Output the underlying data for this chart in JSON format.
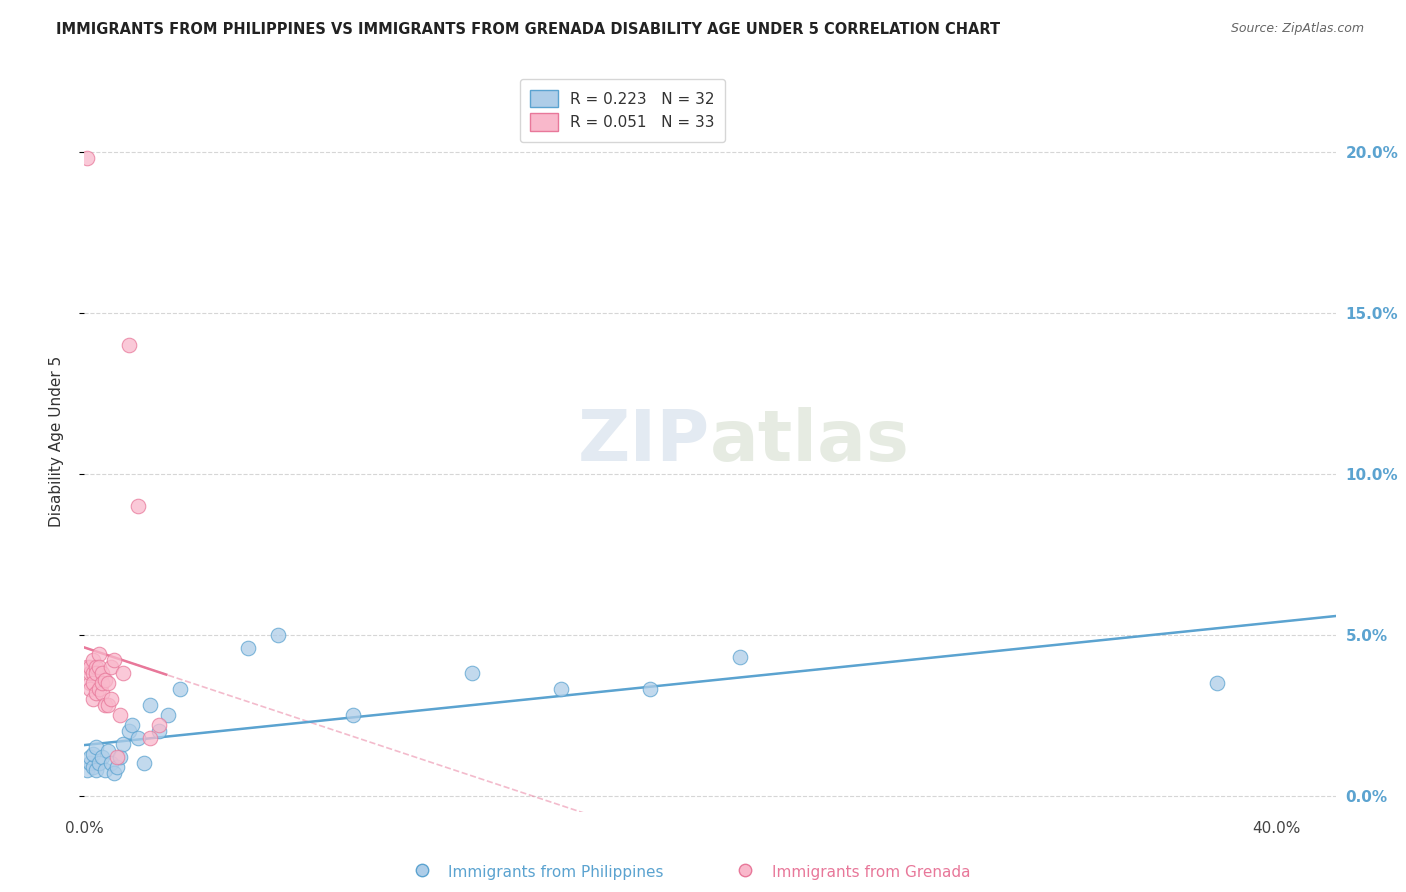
{
  "title": "IMMIGRANTS FROM PHILIPPINES VS IMMIGRANTS FROM GRENADA DISABILITY AGE UNDER 5 CORRELATION CHART",
  "source": "Source: ZipAtlas.com",
  "xlabel_philippines": "Immigrants from Philippines",
  "xlabel_grenada": "Immigrants from Grenada",
  "ylabel": "Disability Age Under 5",
  "r_philippines": 0.223,
  "n_philippines": 32,
  "r_grenada": 0.051,
  "n_grenada": 33,
  "color_philippines": "#aecde8",
  "color_grenada": "#f9b8cb",
  "line_color_philippines": "#5ba3d0",
  "line_color_grenada": "#e8789a",
  "right_tick_color": "#5ba3d0",
  "xlim": [
    0.0,
    0.42
  ],
  "ylim": [
    -0.005,
    0.225
  ],
  "right_yticks": [
    0.0,
    0.05,
    0.1,
    0.15,
    0.2
  ],
  "right_yticklabels": [
    "0.0%",
    "5.0%",
    "10.0%",
    "15.0%",
    "20.0%"
  ],
  "xtick_values": [
    0.0,
    0.1,
    0.2,
    0.3,
    0.4
  ],
  "xtick_labels": [
    "0.0%",
    "",
    "",
    "",
    "40.0%"
  ],
  "watermark_line1": "ZIP",
  "watermark_line2": "atlas",
  "philippines_x": [
    0.001,
    0.002,
    0.002,
    0.003,
    0.003,
    0.004,
    0.004,
    0.005,
    0.006,
    0.007,
    0.008,
    0.009,
    0.01,
    0.011,
    0.012,
    0.013,
    0.015,
    0.016,
    0.018,
    0.02,
    0.022,
    0.025,
    0.028,
    0.032,
    0.055,
    0.065,
    0.09,
    0.13,
    0.16,
    0.19,
    0.22,
    0.38
  ],
  "philippines_y": [
    0.008,
    0.01,
    0.012,
    0.009,
    0.013,
    0.008,
    0.015,
    0.01,
    0.012,
    0.008,
    0.014,
    0.01,
    0.007,
    0.009,
    0.012,
    0.016,
    0.02,
    0.022,
    0.018,
    0.01,
    0.028,
    0.02,
    0.025,
    0.033,
    0.046,
    0.05,
    0.025,
    0.038,
    0.033,
    0.033,
    0.043,
    0.035
  ],
  "grenada_x": [
    0.001,
    0.001,
    0.002,
    0.002,
    0.002,
    0.002,
    0.003,
    0.003,
    0.003,
    0.003,
    0.004,
    0.004,
    0.004,
    0.005,
    0.005,
    0.005,
    0.006,
    0.006,
    0.006,
    0.007,
    0.007,
    0.008,
    0.008,
    0.009,
    0.009,
    0.01,
    0.011,
    0.012,
    0.013,
    0.015,
    0.018,
    0.022,
    0.025
  ],
  "grenada_y": [
    0.198,
    0.04,
    0.035,
    0.038,
    0.04,
    0.033,
    0.042,
    0.038,
    0.035,
    0.03,
    0.04,
    0.038,
    0.032,
    0.044,
    0.04,
    0.033,
    0.038,
    0.032,
    0.035,
    0.036,
    0.028,
    0.035,
    0.028,
    0.04,
    0.03,
    0.042,
    0.012,
    0.025,
    0.038,
    0.14,
    0.09,
    0.018,
    0.022
  ]
}
